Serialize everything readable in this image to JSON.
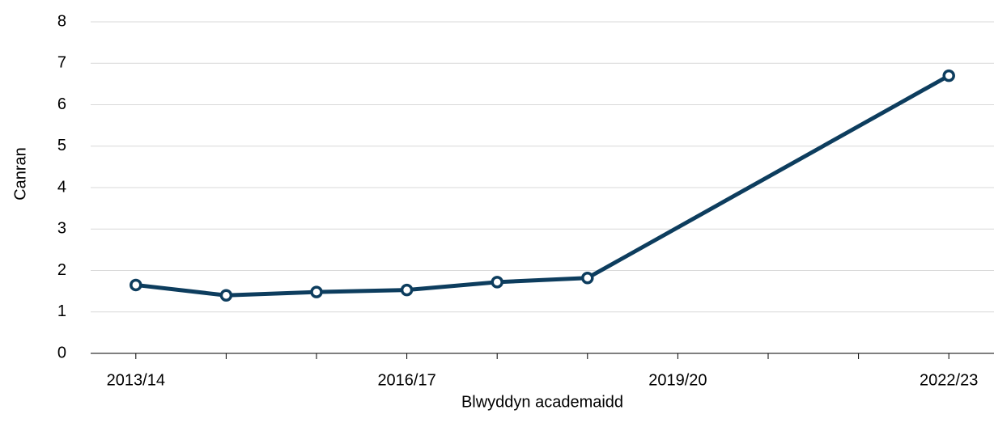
{
  "chart_data": {
    "type": "line",
    "x_label": "Blwyddyn academaidd",
    "y_label": "Canran",
    "categories": [
      "2013/14",
      null,
      null,
      "2016/17",
      null,
      null,
      "2019/20",
      null,
      null,
      "2022/23"
    ],
    "series": [
      {
        "color": "#0d3d5e",
        "values": [
          1.65,
          1.4,
          1.48,
          1.53,
          1.72,
          1.82,
          null,
          null,
          null,
          6.7
        ]
      }
    ],
    "connect_gaps": true,
    "ylim": [
      0,
      8
    ],
    "yticks": [
      0,
      1,
      2,
      3,
      4,
      5,
      6,
      7,
      8
    ],
    "grid": true
  }
}
